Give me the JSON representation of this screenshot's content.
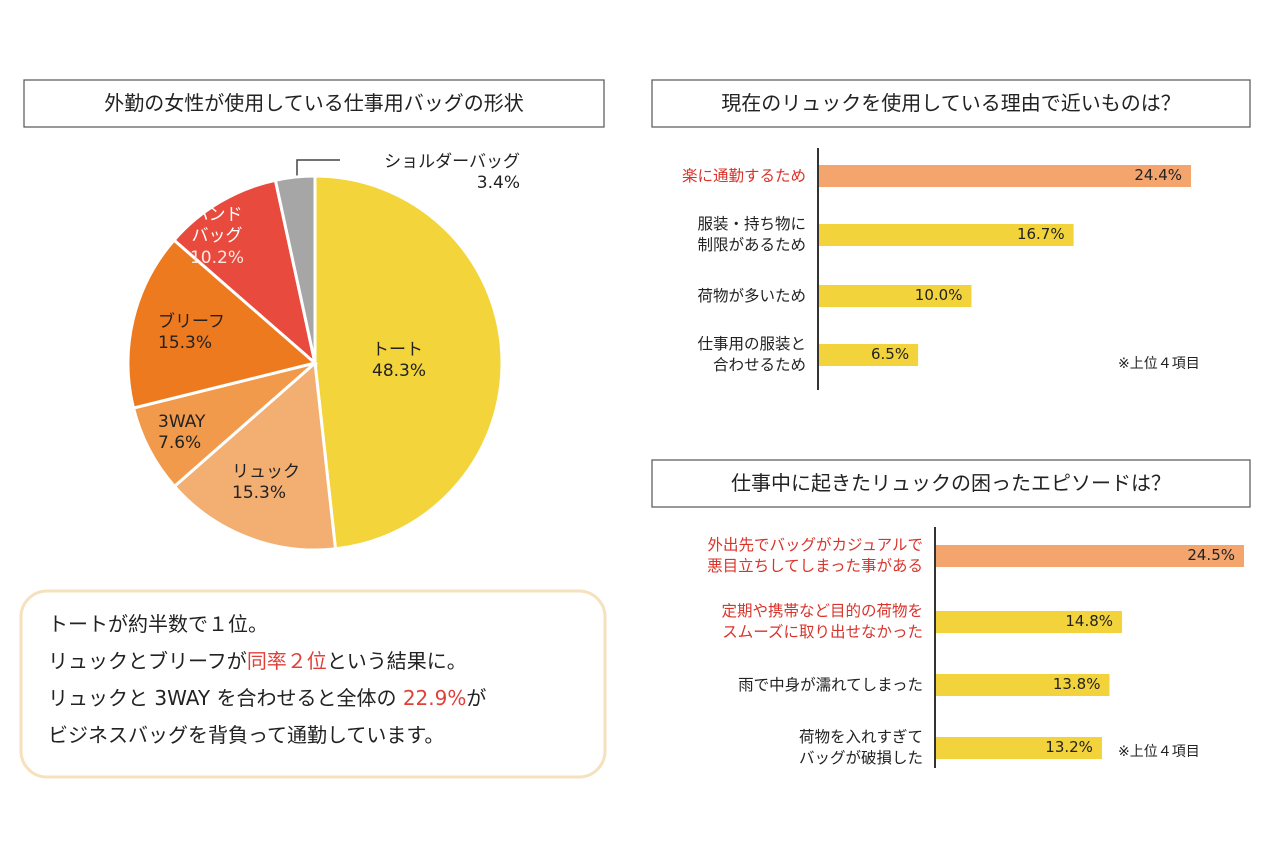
{
  "chart_data": [
    {
      "type": "pie",
      "title": "外勤の女性が使用している仕事用バッグの形状",
      "categories": [
        "トート",
        "リュック",
        "3WAY",
        "ブリーフ",
        "ハンド\nバッグ",
        "ショルダーバッグ"
      ],
      "values": [
        48.3,
        15.3,
        7.6,
        15.3,
        10.2,
        3.4
      ],
      "value_labels": [
        "48.3%",
        "15.3%",
        "7.6%",
        "15.3%",
        "10.2%",
        "3.4%"
      ],
      "colors": [
        "#f3d43b",
        "#f3ae72",
        "#f19a4b",
        "#ee7a1f",
        "#e84a3e",
        "#a6a6a6"
      ]
    },
    {
      "type": "barh",
      "title": "現在のリュックを使用している理由で近いものは？",
      "categories": [
        "楽に通勤するため",
        "服装・持ち物に\n制限があるため",
        "荷物が多いため",
        "仕事用の服装と\n合わせるため"
      ],
      "values": [
        24.4,
        16.7,
        10.0,
        6.5
      ],
      "value_labels": [
        "24.4%",
        "16.7%",
        "10.0%",
        "6.5%"
      ],
      "colors": [
        "#f4a56e",
        "#f2d33b",
        "#f2d33b",
        "#f2d33b"
      ],
      "label_colors": [
        "#d9342b",
        "#222222",
        "#222222",
        "#222222"
      ],
      "note": "※上位４項目"
    },
    {
      "type": "barh",
      "title": "仕事中に起きたリュックの困ったエピソードは？",
      "categories": [
        "外出先でバッグがカジュアルで\n悪目立ちしてしまった事がある",
        "定期や携帯など目的の荷物を\nスムーズに取り出せなかった",
        "雨で中身が濡れてしまった",
        "荷物を入れすぎて\nバッグが破損した"
      ],
      "values": [
        24.5,
        14.8,
        13.8,
        13.2
      ],
      "value_labels": [
        "24.5%",
        "14.8%",
        "13.8%",
        "13.2%"
      ],
      "colors": [
        "#f4a56e",
        "#f2d33b",
        "#f2d33b",
        "#f2d33b"
      ],
      "label_colors": [
        "#d9342b",
        "#d9342b",
        "#222222",
        "#222222"
      ],
      "note": "※上位４項目"
    }
  ],
  "summary": {
    "lines": [
      [
        {
          "text": "トートが約半数で１位。"
        }
      ],
      [
        {
          "text": "リュックとブリーフが"
        },
        {
          "text": "同率２位",
          "color": "#e0403a"
        },
        {
          "text": "という結果に。"
        }
      ],
      [
        {
          "text": "リュックと 3WAY を合わせると全体の "
        },
        {
          "text": "22.9%",
          "color": "#e0403a"
        },
        {
          "text": "が"
        }
      ],
      [
        {
          "text": "ビジネスバッグを背負って通勤しています。"
        }
      ]
    ]
  }
}
